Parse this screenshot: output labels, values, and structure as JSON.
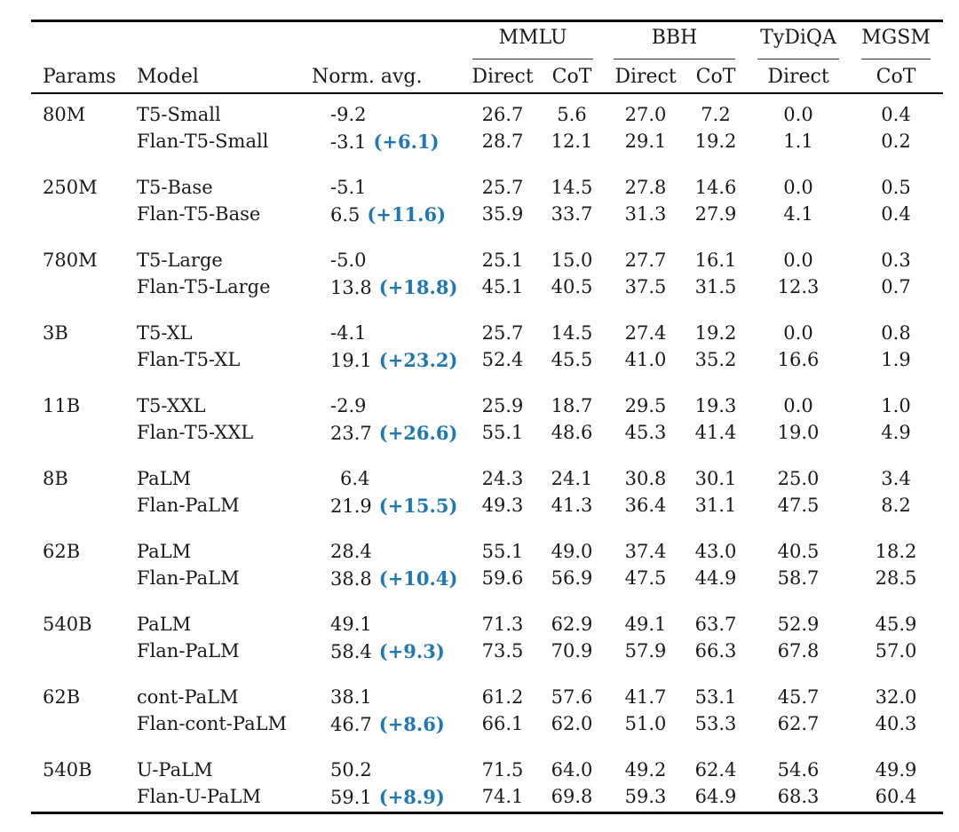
{
  "groups": [
    {
      "label": "MMLU",
      "span": [
        "Direct",
        "CoT"
      ]
    },
    {
      "label": "BBH",
      "span": [
        "Direct",
        "CoT"
      ]
    },
    {
      "label": "TyDiQA",
      "span": [
        "Direct"
      ]
    },
    {
      "label": "MGSM",
      "span": [
        "CoT"
      ]
    }
  ],
  "headers": {
    "params": "Params",
    "model": "Model",
    "norm_avg": "Norm. avg.",
    "mmlu_direct": "Direct",
    "mmlu_cot": "CoT",
    "bbh_direct": "Direct",
    "bbh_cot": "CoT",
    "tydiqa_direct": "Direct",
    "mgsm_cot": "CoT"
  },
  "rows": [
    {
      "params": "80M",
      "model": "T5-Small",
      "norm": "-9.2",
      "delta": "",
      "mmlu_d": "26.7",
      "mmlu_c": "5.6",
      "bbh_d": "27.0",
      "bbh_c": "7.2",
      "tydi": "0.0",
      "mgsm": "0.4"
    },
    {
      "params": "",
      "model": "Flan-T5-Small",
      "norm": "-3.1",
      "delta": "(+6.1)",
      "mmlu_d": "28.7",
      "mmlu_c": "12.1",
      "bbh_d": "29.1",
      "bbh_c": "19.2",
      "tydi": "1.1",
      "mgsm": "0.2"
    },
    {
      "params": "250M",
      "model": "T5-Base",
      "norm": "-5.1",
      "delta": "",
      "mmlu_d": "25.7",
      "mmlu_c": "14.5",
      "bbh_d": "27.8",
      "bbh_c": "14.6",
      "tydi": "0.0",
      "mgsm": "0.5"
    },
    {
      "params": "",
      "model": "Flan-T5-Base",
      "norm": "6.5",
      "delta": "(+11.6)",
      "mmlu_d": "35.9",
      "mmlu_c": "33.7",
      "bbh_d": "31.3",
      "bbh_c": "27.9",
      "tydi": "4.1",
      "mgsm": "0.4"
    },
    {
      "params": "780M",
      "model": "T5-Large",
      "norm": "-5.0",
      "delta": "",
      "mmlu_d": "25.1",
      "mmlu_c": "15.0",
      "bbh_d": "27.7",
      "bbh_c": "16.1",
      "tydi": "0.0",
      "mgsm": "0.3"
    },
    {
      "params": "",
      "model": "Flan-T5-Large",
      "norm": "13.8",
      "delta": "(+18.8)",
      "mmlu_d": "45.1",
      "mmlu_c": "40.5",
      "bbh_d": "37.5",
      "bbh_c": "31.5",
      "tydi": "12.3",
      "mgsm": "0.7"
    },
    {
      "params": "3B",
      "model": "T5-XL",
      "norm": "-4.1",
      "delta": "",
      "mmlu_d": "25.7",
      "mmlu_c": "14.5",
      "bbh_d": "27.4",
      "bbh_c": "19.2",
      "tydi": "0.0",
      "mgsm": "0.8"
    },
    {
      "params": "",
      "model": "Flan-T5-XL",
      "norm": "19.1",
      "delta": "(+23.2)",
      "mmlu_d": "52.4",
      "mmlu_c": "45.5",
      "bbh_d": "41.0",
      "bbh_c": "35.2",
      "tydi": "16.6",
      "mgsm": "1.9"
    },
    {
      "params": "11B",
      "model": "T5-XXL",
      "norm": "-2.9",
      "delta": "",
      "mmlu_d": "25.9",
      "mmlu_c": "18.7",
      "bbh_d": "29.5",
      "bbh_c": "19.3",
      "tydi": "0.0",
      "mgsm": "1.0"
    },
    {
      "params": "",
      "model": "Flan-T5-XXL",
      "norm": "23.7",
      "delta": "(+26.6)",
      "mmlu_d": "55.1",
      "mmlu_c": "48.6",
      "bbh_d": "45.3",
      "bbh_c": "41.4",
      "tydi": "19.0",
      "mgsm": "4.9"
    },
    {
      "params": "8B",
      "model": "PaLM",
      "norm": "6.4",
      "delta": "",
      "mmlu_d": "24.3",
      "mmlu_c": "24.1",
      "bbh_d": "30.8",
      "bbh_c": "30.1",
      "tydi": "25.0",
      "mgsm": "3.4"
    },
    {
      "params": "",
      "model": "Flan-PaLM",
      "norm": "21.9",
      "delta": "(+15.5)",
      "mmlu_d": "49.3",
      "mmlu_c": "41.3",
      "bbh_d": "36.4",
      "bbh_c": "31.1",
      "tydi": "47.5",
      "mgsm": "8.2"
    },
    {
      "params": "62B",
      "model": "PaLM",
      "norm": "28.4",
      "delta": "",
      "mmlu_d": "55.1",
      "mmlu_c": "49.0",
      "bbh_d": "37.4",
      "bbh_c": "43.0",
      "tydi": "40.5",
      "mgsm": "18.2"
    },
    {
      "params": "",
      "model": "Flan-PaLM",
      "norm": "38.8",
      "delta": "(+10.4)",
      "mmlu_d": "59.6",
      "mmlu_c": "56.9",
      "bbh_d": "47.5",
      "bbh_c": "44.9",
      "tydi": "58.7",
      "mgsm": "28.5"
    },
    {
      "params": "540B",
      "model": "PaLM",
      "norm": "49.1",
      "delta": "",
      "mmlu_d": "71.3",
      "mmlu_c": "62.9",
      "bbh_d": "49.1",
      "bbh_c": "63.7",
      "tydi": "52.9",
      "mgsm": "45.9"
    },
    {
      "params": "",
      "model": "Flan-PaLM",
      "norm": "58.4",
      "delta": "(+9.3)",
      "mmlu_d": "73.5",
      "mmlu_c": "70.9",
      "bbh_d": "57.9",
      "bbh_c": "66.3",
      "tydi": "67.8",
      "mgsm": "57.0"
    },
    {
      "params": "62B",
      "model": "cont-PaLM",
      "norm": "38.1",
      "delta": "",
      "mmlu_d": "61.2",
      "mmlu_c": "57.6",
      "bbh_d": "41.7",
      "bbh_c": "53.1",
      "tydi": "45.7",
      "mgsm": "32.0"
    },
    {
      "params": "",
      "model": "Flan-cont-PaLM",
      "norm": "46.7",
      "delta": "(+8.6)",
      "mmlu_d": "66.1",
      "mmlu_c": "62.0",
      "bbh_d": "51.0",
      "bbh_c": "53.3",
      "tydi": "62.7",
      "mgsm": "40.3"
    },
    {
      "params": "540B",
      "model": "U-PaLM",
      "norm": "50.2",
      "delta": "",
      "mmlu_d": "71.5",
      "mmlu_c": "64.0",
      "bbh_d": "49.2",
      "bbh_c": "62.4",
      "tydi": "54.6",
      "mgsm": "49.9"
    },
    {
      "params": "",
      "model": "Flan-U-PaLM",
      "norm": "59.1",
      "delta": "(+8.9)",
      "mmlu_d": "74.1",
      "mmlu_c": "69.8",
      "bbh_d": "59.3",
      "bbh_c": "64.9",
      "tydi": "68.3",
      "mgsm": "60.4"
    }
  ],
  "colors": {
    "delta": "#1f78b4",
    "text": "#1a1a1a",
    "rule": "#000000"
  }
}
